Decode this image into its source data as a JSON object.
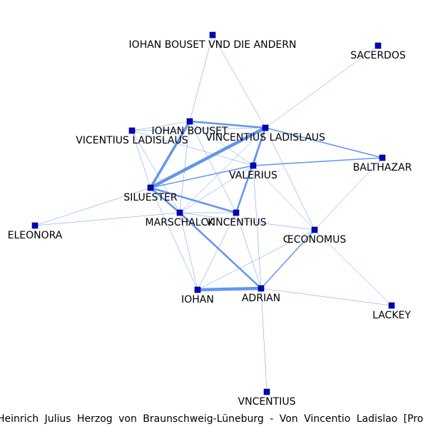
{
  "caption": "Heinrich Julius Herzog von Braunschweig-Lüneburg - Von Vincentio Ladislao [Pro",
  "colors": {
    "edge": "#6495ed",
    "node_fill": "#0000cd",
    "node_stroke": "#000000",
    "label": "#000000"
  },
  "nodes": [
    {
      "id": "iohan_bouset_und",
      "label": "IOHAN BOUSET VND DIE ANDERN"
    },
    {
      "id": "sacerdos",
      "label": "SACERDOS"
    },
    {
      "id": "iohan_bouset",
      "label": "IOHAN BOUSET"
    },
    {
      "id": "vicentius_ladislaus",
      "label": "VICENTIUS LADISLAUS"
    },
    {
      "id": "vincentius_ladislaus",
      "label": "VINCENTIUS LADISLAUS"
    },
    {
      "id": "balthazar",
      "label": "BALTHAZAR"
    },
    {
      "id": "valerius",
      "label": "VALERIUS"
    },
    {
      "id": "siluester",
      "label": "SILUESTER"
    },
    {
      "id": "eleonora",
      "label": "ELEONORA"
    },
    {
      "id": "marschalck",
      "label": "MARSCHALCK"
    },
    {
      "id": "vincentius",
      "label": "VINCENTIUS"
    },
    {
      "id": "oeconomus",
      "label": "ŒCONOMUS"
    },
    {
      "id": "iohan",
      "label": "IOHAN"
    },
    {
      "id": "adrian",
      "label": "ADRIAN"
    },
    {
      "id": "lackey",
      "label": "LACKEY"
    },
    {
      "id": "vncentius",
      "label": "VNCENTIUS"
    }
  ],
  "edges": [
    {
      "source": "iohan_bouset_und",
      "target": "iohan_bouset",
      "weight": 1
    },
    {
      "source": "iohan_bouset_und",
      "target": "vincentius_ladislaus",
      "weight": 1
    },
    {
      "source": "sacerdos",
      "target": "vincentius_ladislaus",
      "weight": 1
    },
    {
      "source": "iohan_bouset",
      "target": "vincentius_ladislaus",
      "weight": 3
    },
    {
      "source": "iohan_bouset",
      "target": "vicentius_ladislaus",
      "weight": 1
    },
    {
      "source": "iohan_bouset",
      "target": "siluester",
      "weight": 4
    },
    {
      "source": "iohan_bouset",
      "target": "valerius",
      "weight": 1
    },
    {
      "source": "iohan_bouset",
      "target": "marschalck",
      "weight": 1
    },
    {
      "source": "iohan_bouset",
      "target": "vincentius",
      "weight": 1
    },
    {
      "source": "vicentius_ladislaus",
      "target": "vincentius_ladislaus",
      "weight": 1
    },
    {
      "source": "vicentius_ladislaus",
      "target": "siluester",
      "weight": 1
    },
    {
      "source": "vicentius_ladislaus",
      "target": "valerius",
      "weight": 1
    },
    {
      "source": "vicentius_ladislaus",
      "target": "marschalck",
      "weight": 1
    },
    {
      "source": "vincentius_ladislaus",
      "target": "siluester",
      "weight": 5
    },
    {
      "source": "vincentius_ladislaus",
      "target": "valerius",
      "weight": 2
    },
    {
      "source": "vincentius_ladislaus",
      "target": "vincentius",
      "weight": 3
    },
    {
      "source": "vincentius_ladislaus",
      "target": "balthazar",
      "weight": 2
    },
    {
      "source": "vincentius_ladislaus",
      "target": "marschalck",
      "weight": 1
    },
    {
      "source": "vincentius_ladislaus",
      "target": "oeconomus",
      "weight": 1
    },
    {
      "source": "balthazar",
      "target": "valerius",
      "weight": 2
    },
    {
      "source": "balthazar",
      "target": "oeconomus",
      "weight": 1
    },
    {
      "source": "valerius",
      "target": "siluester",
      "weight": 2
    },
    {
      "source": "valerius",
      "target": "oeconomus",
      "weight": 1
    },
    {
      "source": "valerius",
      "target": "marschalck",
      "weight": 1
    },
    {
      "source": "valerius",
      "target": "adrian",
      "weight": 1
    },
    {
      "source": "siluester",
      "target": "marschalck",
      "weight": 3
    },
    {
      "source": "siluester",
      "target": "vincentius",
      "weight": 3
    },
    {
      "source": "siluester",
      "target": "eleonora",
      "weight": 1
    },
    {
      "source": "siluester",
      "target": "iohan",
      "weight": 1
    },
    {
      "source": "eleonora",
      "target": "marschalck",
      "weight": 1
    },
    {
      "source": "marschalck",
      "target": "vincentius",
      "weight": 1
    },
    {
      "source": "marschalck",
      "target": "adrian",
      "weight": 3
    },
    {
      "source": "marschalck",
      "target": "iohan",
      "weight": 1
    },
    {
      "source": "marschalck",
      "target": "oeconomus",
      "weight": 1
    },
    {
      "source": "vincentius",
      "target": "iohan",
      "weight": 1
    },
    {
      "source": "vincentius",
      "target": "adrian",
      "weight": 1
    },
    {
      "source": "oeconomus",
      "target": "iohan",
      "weight": 1
    },
    {
      "source": "oeconomus",
      "target": "adrian",
      "weight": 2
    },
    {
      "source": "oeconomus",
      "target": "lackey",
      "weight": 1
    },
    {
      "source": "iohan",
      "target": "adrian",
      "weight": 5
    },
    {
      "source": "adrian",
      "target": "lackey",
      "weight": 1
    },
    {
      "source": "adrian",
      "target": "vncentius",
      "weight": 1
    }
  ]
}
